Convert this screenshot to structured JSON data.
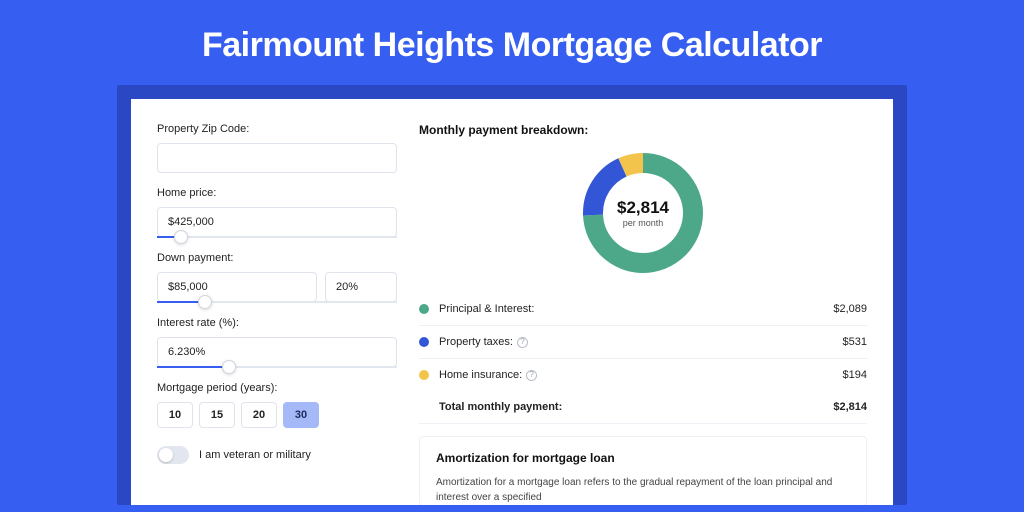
{
  "page": {
    "title": "Fairmount Heights Mortgage Calculator",
    "bg_color": "#365ef0",
    "panel_color": "#2a48c4"
  },
  "form": {
    "zip_label": "Property Zip Code:",
    "zip_value": "",
    "home_price_label": "Home price:",
    "home_price_value": "$425,000",
    "home_price_slider_pct": 10,
    "down_payment_label": "Down payment:",
    "down_payment_value": "$85,000",
    "down_payment_pct_value": "20%",
    "down_payment_slider_pct": 20,
    "interest_label": "Interest rate (%):",
    "interest_value": "6.230%",
    "interest_slider_pct": 30,
    "period_label": "Mortgage period (years):",
    "periods": [
      "10",
      "15",
      "20",
      "30"
    ],
    "period_active_index": 3,
    "veteran_label": "I am veteran or military",
    "veteran_on": false
  },
  "breakdown": {
    "title": "Monthly payment breakdown:",
    "donut": {
      "amount": "$2,814",
      "sub": "per month",
      "slices": [
        {
          "color": "#4da88a",
          "fraction": 0.742
        },
        {
          "color": "#3356d6",
          "fraction": 0.189
        },
        {
          "color": "#f3c44b",
          "fraction": 0.069
        }
      ],
      "stroke_width": 20
    },
    "rows": [
      {
        "dot": "#4da88a",
        "label": "Principal & Interest:",
        "info": false,
        "value": "$2,089"
      },
      {
        "dot": "#3356d6",
        "label": "Property taxes:",
        "info": true,
        "value": "$531"
      },
      {
        "dot": "#f3c44b",
        "label": "Home insurance:",
        "info": true,
        "value": "$194"
      }
    ],
    "total_label": "Total monthly payment:",
    "total_value": "$2,814"
  },
  "amortization": {
    "title": "Amortization for mortgage loan",
    "text": "Amortization for a mortgage loan refers to the gradual repayment of the loan principal and interest over a specified"
  }
}
